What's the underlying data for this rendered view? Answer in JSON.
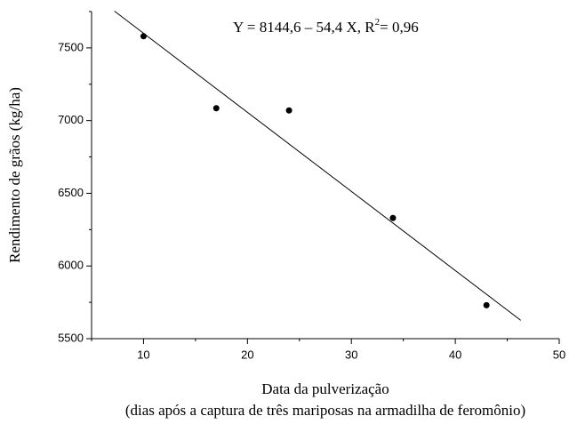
{
  "chart_data": {
    "type": "scatter",
    "x": [
      10,
      17,
      24,
      34,
      43
    ],
    "values": [
      7580,
      7085,
      7070,
      6330,
      5730
    ],
    "color": "#000000",
    "fit": {
      "x": [
        7.2,
        46.3
      ],
      "y": [
        7753,
        5626
      ]
    },
    "annotation": {
      "text": "Y = 8144,6 – 54,4 X, R",
      "sup": "2",
      "tail": "= 0,96"
    },
    "xlabel": [
      "Data da pulverização",
      "(dias após a captura de três mariposas na armadilha de feromônio)"
    ],
    "ylabel": "Rendimento de grãos (kg/ha)",
    "xlim": [
      5,
      50
    ],
    "ylim": [
      5500,
      7750
    ],
    "xticks": [
      10,
      20,
      30,
      40,
      50
    ],
    "xminorticks": [
      5,
      15,
      25,
      35,
      45
    ],
    "yticks": [
      5500,
      6000,
      6500,
      7000,
      7500
    ],
    "yminorticks": [
      5750,
      6250,
      6750,
      7250,
      7750
    ]
  }
}
